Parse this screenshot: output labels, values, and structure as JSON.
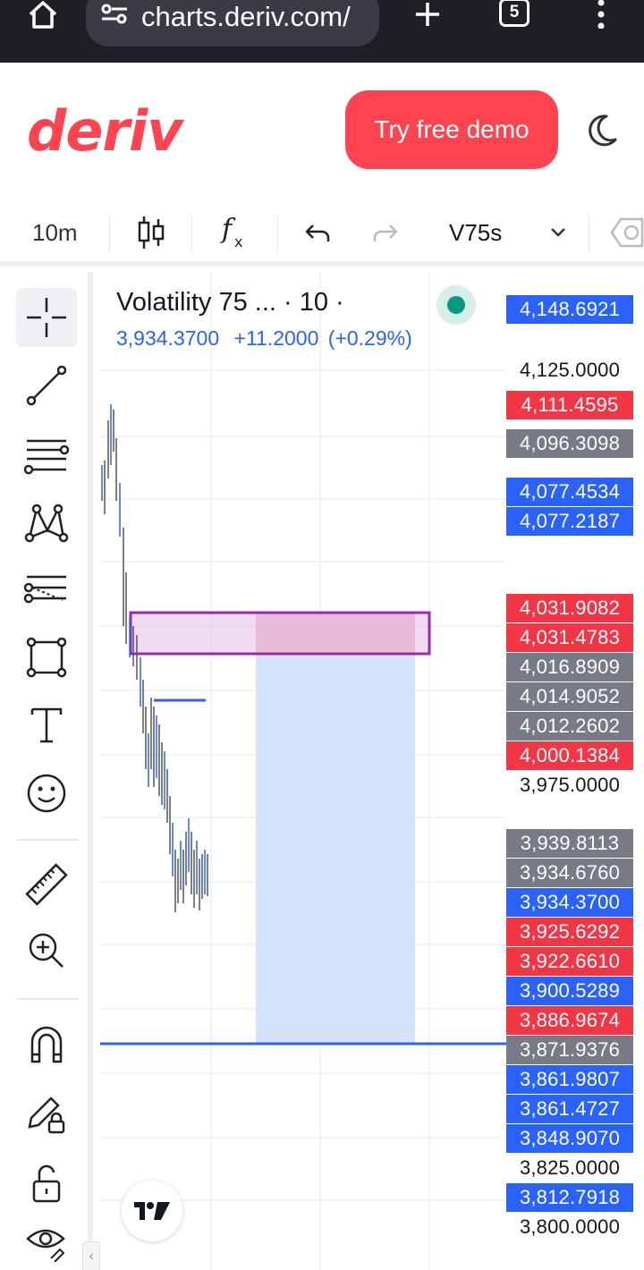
{
  "browser": {
    "url": "charts.deriv.com/",
    "tab_count": "5"
  },
  "header": {
    "logo": "deriv",
    "demo_button": "Try free demo"
  },
  "toolbar": {
    "interval": "10m",
    "symbol": "V75s"
  },
  "left_tools": [
    "crosshair-icon",
    "trend-line-icon",
    "fib-retracement-icon",
    "pattern-icon",
    "prediction-icon",
    "rectangle-icon",
    "text-icon",
    "emoji-icon",
    "ruler-icon",
    "zoom-in-icon",
    "magnet-icon",
    "lock-drawing-icon",
    "lock-icon",
    "eye-icon"
  ],
  "legend": {
    "title": "Volatility 75 ... · 10 ·",
    "price": "3,934.3700",
    "change": "+11.2000",
    "change_pct": "(+0.29%)"
  },
  "colors": {
    "brand": "#ff444f",
    "blue_label": "#2962ff",
    "red_label": "#f23645",
    "gray_label": "#787b86",
    "zone_purple": "#9c27b0",
    "zone_fill_blue": "#d6e4fb"
  },
  "price_labels": [
    {
      "value": "4,148.6921",
      "kind": "blue"
    },
    {
      "value": "4,125.0000",
      "kind": "plain"
    },
    {
      "value": "4,111.4595",
      "kind": "red"
    },
    {
      "value": "4,096.3098",
      "kind": "gray"
    },
    {
      "value": "4,077.4534",
      "kind": "blue"
    },
    {
      "value": "4,077.2187",
      "kind": "blue"
    },
    {
      "value": "4,031.9082",
      "kind": "red"
    },
    {
      "value": "4,031.4783",
      "kind": "red"
    },
    {
      "value": "4,016.8909",
      "kind": "gray"
    },
    {
      "value": "4,014.9052",
      "kind": "gray"
    },
    {
      "value": "4,012.2602",
      "kind": "gray"
    },
    {
      "value": "4,000.1384",
      "kind": "red"
    },
    {
      "value": "3,975.0000",
      "kind": "plain"
    },
    {
      "value": "3,939.8113",
      "kind": "gray"
    },
    {
      "value": "3,934.6760",
      "kind": "gray"
    },
    {
      "value": "3,934.3700",
      "kind": "blue"
    },
    {
      "value": "3,925.6292",
      "kind": "red"
    },
    {
      "value": "3,922.6610",
      "kind": "red"
    },
    {
      "value": "3,900.5289",
      "kind": "blue"
    },
    {
      "value": "3,886.9674",
      "kind": "red"
    },
    {
      "value": "3,871.9376",
      "kind": "gray"
    },
    {
      "value": "3,861.9807",
      "kind": "blue"
    },
    {
      "value": "3,861.4727",
      "kind": "blue"
    },
    {
      "value": "3,848.9070",
      "kind": "blue"
    },
    {
      "value": "3,825.0000",
      "kind": "plain"
    },
    {
      "value": "3,812.7918",
      "kind": "blue"
    },
    {
      "value": "3,800.0000",
      "kind": "plain"
    }
  ]
}
